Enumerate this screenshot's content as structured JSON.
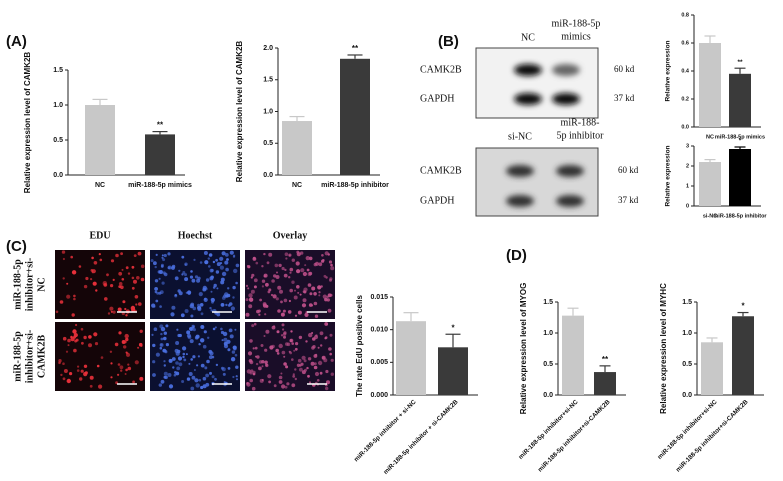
{
  "panels": [
    "(A)",
    "(B)",
    "(C)",
    "(D)"
  ],
  "blots": [
    {
      "lanes": [
        [
          "NC"
        ],
        [
          "miR-188-5p",
          "mimics"
        ]
      ],
      "rows": [
        "CAMK2B",
        "GAPDH"
      ],
      "sizes": [
        "60 kd",
        "37 kd"
      ]
    },
    {
      "lanes": [
        [
          "si-NC"
        ],
        [
          "miR-188-",
          "5p inhibitor"
        ]
      ],
      "rows": [
        "CAMK2B",
        "GAPDH"
      ],
      "sizes": [
        "60 kd",
        "37 kd"
      ]
    }
  ],
  "microscopy": {
    "columns": [
      "EDU",
      "Hoechst",
      "Overlay"
    ],
    "rows": [
      [
        "miR-188-5p",
        "inhibitor+si-",
        "NC"
      ],
      [
        "miR-188-5p",
        "inhibitor+si-",
        "CAMK2B"
      ]
    ]
  },
  "chart_data": [
    {
      "type": "bar",
      "y_label": "Relative expression level of CAMK2B",
      "categories": [
        "NC",
        "miR-188-5p mimics"
      ],
      "values": [
        1.0,
        0.58
      ],
      "errors": [
        0.08,
        0.04
      ],
      "colors": [
        "#c8c8c8",
        "#3a3a3a"
      ],
      "annotation": "**",
      "ylim": [
        0,
        1.5
      ],
      "yticks": [
        {
          "value": 0,
          "label": "0.0"
        },
        {
          "value": 0.5,
          "label": "0.5"
        },
        {
          "value": 1,
          "label": "1.0"
        },
        {
          "value": 1.5,
          "label": "1.5"
        }
      ]
    },
    {
      "type": "bar",
      "y_label": "Relative expression level of CAMK2B",
      "categories": [
        "NC",
        "miR-188-5p inhibitor"
      ],
      "values": [
        0.85,
        1.83
      ],
      "errors": [
        0.07,
        0.06
      ],
      "colors": [
        "#c8c8c8",
        "#3a3a3a"
      ],
      "annotation": "**",
      "ylim": [
        0,
        2
      ],
      "yticks": [
        {
          "value": 0,
          "label": "0.0"
        },
        {
          "value": 0.5,
          "label": "0.5"
        },
        {
          "value": 1,
          "label": "1.0"
        },
        {
          "value": 1.5,
          "label": "1.5"
        },
        {
          "value": 2,
          "label": "2.0"
        }
      ]
    },
    {
      "type": "bar",
      "y_label": "Relative expression",
      "categories": [
        "NC",
        "miR-188-5p mimics"
      ],
      "values": [
        0.6,
        0.38
      ],
      "errors": [
        0.05,
        0.04
      ],
      "colors": [
        "#c8c8c8",
        "#3a3a3a"
      ],
      "annotation": "**",
      "ylim": [
        0,
        0.8
      ],
      "yticks": [
        {
          "value": 0,
          "label": "0.0"
        },
        0.2,
        0.4,
        0.6,
        0.8
      ]
    },
    {
      "type": "bar",
      "y_label": "Relative expression",
      "categories": [
        "si-NC",
        "miR-188-5p inhibitor"
      ],
      "values": [
        2.2,
        2.85
      ],
      "errors": [
        0.12,
        0.1
      ],
      "colors": [
        "#c8c8c8",
        "#000000"
      ],
      "annotation": "*",
      "ylim": [
        0,
        3
      ],
      "yticks": [
        0,
        1,
        2,
        3
      ]
    },
    {
      "type": "bar",
      "y_label": "The rate EdU positive cells",
      "categories": [
        "miR-188-5p inhibitor + si-NC",
        "miR-188-5p inhibitor + si-CAMK2B"
      ],
      "values": [
        0.0113,
        0.0073
      ],
      "errors": [
        0.0013,
        0.002
      ],
      "colors": [
        "#c8c8c8",
        "#3a3a3a"
      ],
      "annotation": "*",
      "ylim": [
        0,
        0.015
      ],
      "yticks": [
        {
          "value": 0,
          "label": "0.000"
        },
        {
          "value": 0.005,
          "label": "0.005"
        },
        {
          "value": 0.01,
          "label": "0.010"
        },
        {
          "value": 0.015,
          "label": "0.015"
        }
      ]
    },
    {
      "type": "bar",
      "y_label": "Relative expression level of MYOG",
      "categories": [
        "miR-188-5p inhibitor+si-NC",
        "miR-188-5p inhibitor+si-CAMK2B"
      ],
      "values": [
        1.28,
        0.37
      ],
      "errors": [
        0.12,
        0.1
      ],
      "colors": [
        "#c8c8c8",
        "#3a3a3a"
      ],
      "annotation": "**",
      "ylim": [
        0,
        1.5
      ],
      "yticks": [
        {
          "value": 0,
          "label": "0.0"
        },
        {
          "value": 0.5,
          "label": "0.5"
        },
        {
          "value": 1,
          "label": "1.0"
        },
        {
          "value": 1.5,
          "label": "1.5"
        }
      ]
    },
    {
      "type": "bar",
      "y_label": "Relative expression level of MYHC",
      "categories": [
        "miR-188-5p inhibitor+si-NC",
        "miR-188-5p inhibitor+si-CAMK2B"
      ],
      "values": [
        0.85,
        1.27
      ],
      "errors": [
        0.07,
        0.06
      ],
      "colors": [
        "#c8c8c8",
        "#3a3a3a"
      ],
      "annotation": "*",
      "ylim": [
        0,
        1.5
      ],
      "yticks": [
        {
          "value": 0,
          "label": "0.0"
        },
        {
          "value": 0.5,
          "label": "0.5"
        },
        {
          "value": 1,
          "label": "1.0"
        },
        {
          "value": 1.5,
          "label": "1.5"
        }
      ]
    }
  ]
}
